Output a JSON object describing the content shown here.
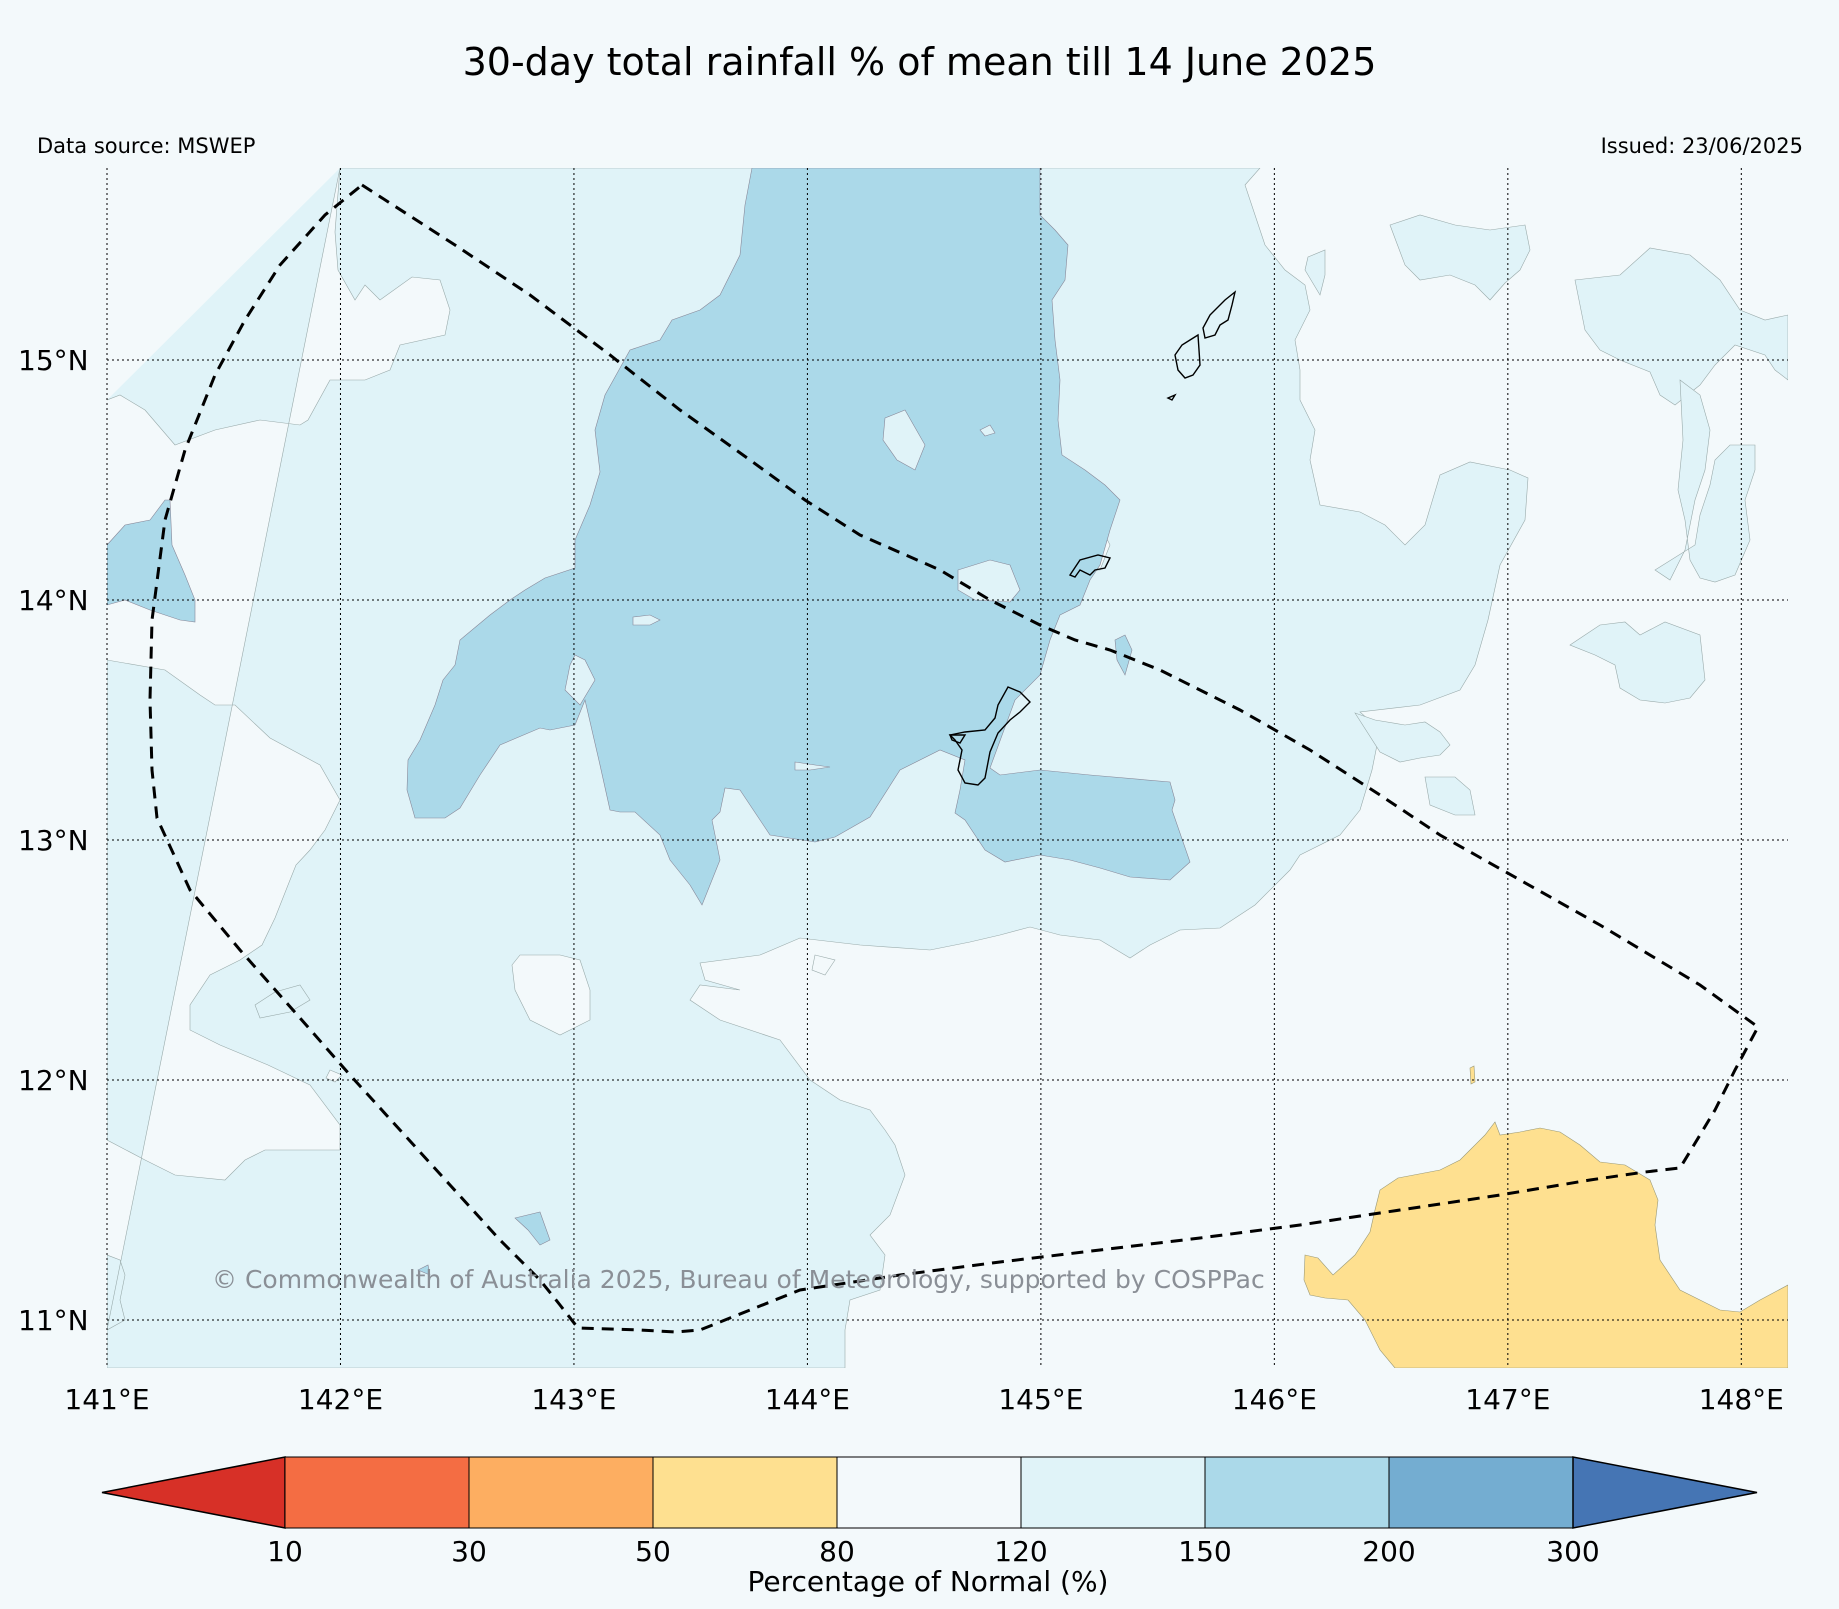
{
  "title": "30-day total rainfall % of mean till 14 June 2025",
  "data_source": "Data source: MSWEP",
  "issued": "Issued: 23/06/2025",
  "credit": "© Commonwealth of Australia 2025, Bureau of Meteorology, supported by COSPPac",
  "map": {
    "lon_range": [
      141.0,
      148.2
    ],
    "lat_range": [
      10.8,
      15.8
    ],
    "lat_labels": [
      "15°N",
      "14°N",
      "13°N",
      "12°N",
      "11°N"
    ],
    "lon_labels": [
      "141°E",
      "142°E",
      "143°E",
      "144°E",
      "145°E",
      "146°E",
      "147°E",
      "148°E"
    ],
    "grid": true,
    "eez_outline": "dashed"
  },
  "colorbar": {
    "title": "Percentage of Normal (%)",
    "ticks": [
      "10",
      "30",
      "50",
      "80",
      "120",
      "150",
      "200",
      "300"
    ],
    "colors": [
      "#d73027",
      "#f46d43",
      "#fdae61",
      "#fee090",
      "#f3f9fb",
      "#e0f3f8",
      "#abd9e9",
      "#74add1",
      "#4575b4"
    ],
    "extend": "both"
  }
}
